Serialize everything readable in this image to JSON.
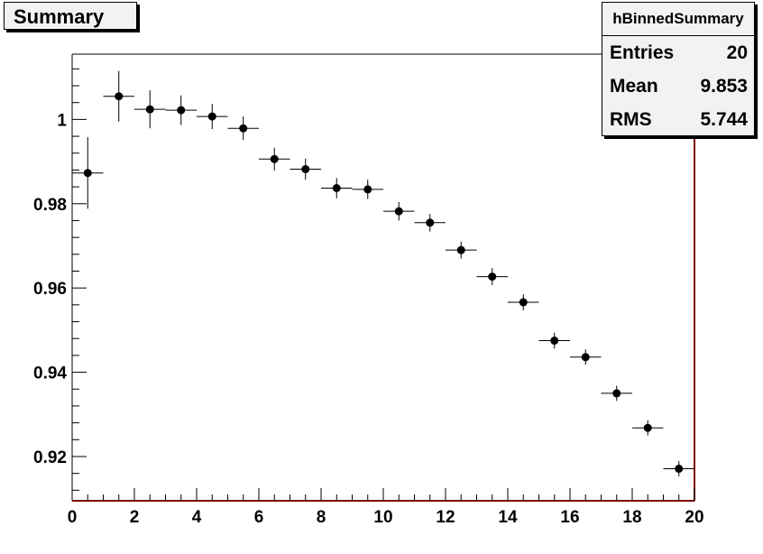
{
  "title": "Summary",
  "stats": {
    "name": "hBinnedSummary",
    "rows": [
      {
        "label": "Entries",
        "value": "20"
      },
      {
        "label": "Mean",
        "value": "9.853"
      },
      {
        "label": "RMS",
        "value": "5.744"
      }
    ]
  },
  "chart_data": {
    "type": "scatter",
    "title": "Summary",
    "xlabel": "",
    "ylabel": "",
    "xlim": [
      0,
      20
    ],
    "ylim": [
      0.9095,
      1.0155
    ],
    "xticks": [
      0,
      2,
      4,
      6,
      8,
      10,
      12,
      14,
      16,
      18,
      20
    ],
    "yticks": [
      0.92,
      0.94,
      0.96,
      0.98,
      1.0
    ],
    "ytick_labels": [
      "0.92",
      "0.94",
      "0.96",
      "0.98",
      "1"
    ],
    "bin_half_width": 0.5,
    "x": [
      0.5,
      1.5,
      2.5,
      3.5,
      4.5,
      5.5,
      6.5,
      7.5,
      8.5,
      9.5,
      10.5,
      11.5,
      12.5,
      13.5,
      14.5,
      15.5,
      16.5,
      17.5,
      18.5,
      19.5
    ],
    "y": [
      0.9873,
      1.0055,
      1.0024,
      1.0022,
      1.0007,
      0.9979,
      0.9906,
      0.9882,
      0.9837,
      0.9834,
      0.9782,
      0.9755,
      0.969,
      0.9627,
      0.9566,
      0.9475,
      0.9436,
      0.935,
      0.9268,
      0.9171
    ],
    "yerr": [
      0.0085,
      0.006,
      0.0045,
      0.0035,
      0.003,
      0.0028,
      0.0027,
      0.0025,
      0.0024,
      0.0023,
      0.0022,
      0.0021,
      0.002,
      0.002,
      0.0019,
      0.0019,
      0.0018,
      0.0018,
      0.0018,
      0.0018
    ],
    "grid": false,
    "colors": {
      "marker": "#000000",
      "frame": "#800000"
    }
  }
}
